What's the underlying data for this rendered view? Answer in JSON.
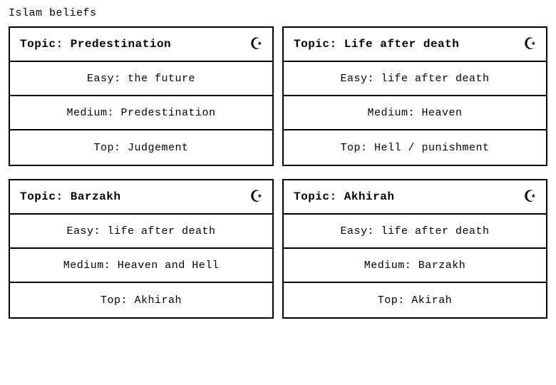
{
  "page_title": "Islam beliefs",
  "layout": {
    "grid_cols": 2,
    "grid_rows": 2,
    "card_border_color": "#000000",
    "card_border_width": 2,
    "background_color": "#ffffff",
    "text_color": "#000000",
    "font_family": "Courier New",
    "title_fontsize": 15,
    "header_fontsize": 16,
    "row_fontsize": 15,
    "icon_glyph": "☪",
    "icon_fontsize": 26
  },
  "cards": [
    {
      "topic_prefix": "Topic: ",
      "topic": "Predestination",
      "rows": [
        "Easy: the future",
        "Medium: Predestination",
        "Top: Judgement"
      ]
    },
    {
      "topic_prefix": "Topic: ",
      "topic": "Life after death",
      "rows": [
        "Easy: life after death",
        "Medium: Heaven",
        "Top: Hell / punishment"
      ]
    },
    {
      "topic_prefix": "Topic: ",
      "topic": "Barzakh",
      "rows": [
        "Easy: life after death",
        "Medium: Heaven and Hell",
        "Top: Akhirah"
      ]
    },
    {
      "topic_prefix": "Topic: ",
      "topic": "Akhirah",
      "rows": [
        "Easy: life after death",
        "Medium: Barzakh",
        "Top: Akirah"
      ]
    }
  ]
}
